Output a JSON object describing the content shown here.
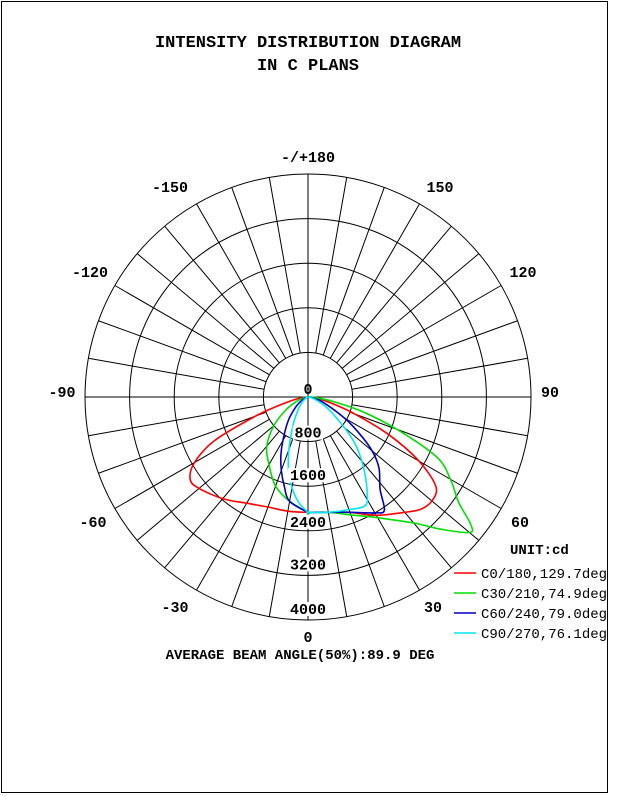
{
  "chart_data": {
    "type": "polar-line",
    "title": [
      "INTENSITY DISTRIBUTION DIAGRAM",
      "IN C PLANS"
    ],
    "unit_label": "UNIT:cd",
    "radial_ticks": [
      0,
      800,
      1600,
      2400,
      3200,
      4000
    ],
    "radial_range": [
      0,
      4000
    ],
    "angle_labels": [
      {
        "angle": 180,
        "label": "-/+180"
      },
      {
        "angle": 150,
        "label": "150"
      },
      {
        "angle": -150,
        "label": "-150"
      },
      {
        "angle": 120,
        "label": "120"
      },
      {
        "angle": -120,
        "label": "-120"
      },
      {
        "angle": 90,
        "label": "90"
      },
      {
        "angle": -90,
        "label": "-90"
      },
      {
        "angle": 60,
        "label": "60"
      },
      {
        "angle": -60,
        "label": "-60"
      },
      {
        "angle": 30,
        "label": "30"
      },
      {
        "angle": -30,
        "label": "-30"
      },
      {
        "angle": 0,
        "label": "0"
      }
    ],
    "angle_grid_step": 10,
    "footer": "AVERAGE BEAM ANGLE(50%):89.9 DEG",
    "legend_position": "bottom-right",
    "series": [
      {
        "name": "C0/180,129.7deg",
        "color": "#ff0000",
        "right": [
          [
            0,
            2070
          ],
          [
            10,
            2100
          ],
          [
            20,
            2200
          ],
          [
            30,
            2450
          ],
          [
            40,
            2700
          ],
          [
            45,
            2850
          ],
          [
            50,
            2900
          ],
          [
            55,
            2800
          ],
          [
            60,
            2300
          ],
          [
            65,
            1600
          ],
          [
            70,
            900
          ],
          [
            75,
            450
          ],
          [
            80,
            200
          ],
          [
            85,
            80
          ],
          [
            90,
            0
          ]
        ],
        "left": [
          [
            0,
            2070
          ],
          [
            10,
            2080
          ],
          [
            20,
            2100
          ],
          [
            30,
            2200
          ],
          [
            40,
            2380
          ],
          [
            50,
            2550
          ],
          [
            55,
            2580
          ],
          [
            60,
            2350
          ],
          [
            65,
            1850
          ],
          [
            70,
            1000
          ],
          [
            75,
            450
          ],
          [
            80,
            200
          ],
          [
            90,
            0
          ]
        ]
      },
      {
        "name": "C30/210,74.9deg",
        "color": "#00e000",
        "right": [
          [
            0,
            2070
          ],
          [
            10,
            2100
          ],
          [
            20,
            2250
          ],
          [
            30,
            2500
          ],
          [
            40,
            2950
          ],
          [
            45,
            3350
          ],
          [
            50,
            3780
          ],
          [
            52,
            3700
          ],
          [
            55,
            3300
          ],
          [
            60,
            2950
          ],
          [
            65,
            2550
          ],
          [
            70,
            1700
          ],
          [
            75,
            1000
          ],
          [
            80,
            450
          ],
          [
            85,
            150
          ],
          [
            90,
            0
          ]
        ],
        "left": [
          [
            0,
            2070
          ],
          [
            10,
            1900
          ],
          [
            20,
            1700
          ],
          [
            30,
            1400
          ],
          [
            40,
            1150
          ],
          [
            50,
            800
          ],
          [
            60,
            450
          ],
          [
            70,
            200
          ],
          [
            80,
            60
          ],
          [
            90,
            0
          ]
        ]
      },
      {
        "name": "C60/240,79.0deg",
        "color": "#0000c0",
        "right": [
          [
            0,
            2070
          ],
          [
            10,
            2100
          ],
          [
            20,
            2200
          ],
          [
            30,
            2400
          ],
          [
            34,
            2450
          ],
          [
            38,
            2100
          ],
          [
            45,
            1800
          ],
          [
            50,
            1500
          ],
          [
            55,
            1100
          ],
          [
            60,
            750
          ],
          [
            70,
            300
          ],
          [
            80,
            100
          ],
          [
            90,
            0
          ]
        ],
        "left": [
          [
            0,
            2070
          ],
          [
            10,
            1900
          ],
          [
            15,
            1650
          ],
          [
            20,
            1400
          ],
          [
            25,
            1150
          ],
          [
            30,
            900
          ],
          [
            40,
            550
          ],
          [
            50,
            300
          ],
          [
            60,
            150
          ],
          [
            70,
            60
          ],
          [
            90,
            0
          ]
        ]
      },
      {
        "name": "C90/270,76.1deg",
        "color": "#00e8f0",
        "right": [
          [
            0,
            2070
          ],
          [
            10,
            2100
          ],
          [
            20,
            2150
          ],
          [
            28,
            2200
          ],
          [
            32,
            2000
          ],
          [
            36,
            1750
          ],
          [
            40,
            1500
          ],
          [
            45,
            1200
          ],
          [
            50,
            850
          ],
          [
            60,
            400
          ],
          [
            70,
            150
          ],
          [
            80,
            50
          ],
          [
            90,
            0
          ]
        ],
        "left": [
          [
            0,
            2070
          ],
          [
            5,
            1900
          ],
          [
            10,
            1650
          ],
          [
            15,
            1350
          ],
          [
            20,
            1000
          ],
          [
            25,
            700
          ],
          [
            30,
            500
          ],
          [
            40,
            250
          ],
          [
            50,
            120
          ],
          [
            70,
            30
          ],
          [
            90,
            0
          ]
        ]
      }
    ]
  }
}
